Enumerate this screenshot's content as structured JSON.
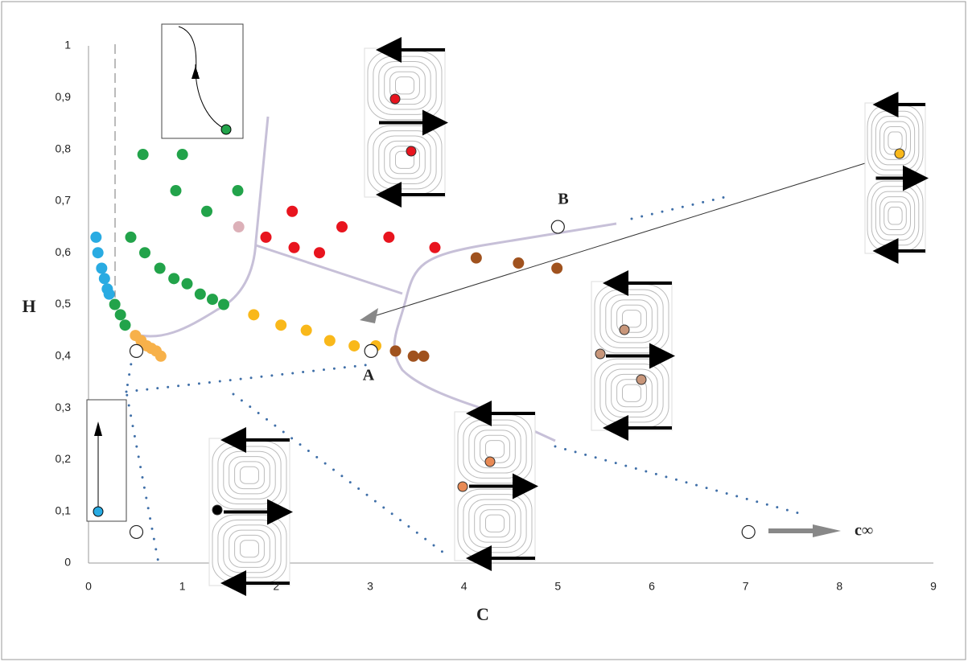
{
  "chart_data": {
    "type": "scatter",
    "xlabel": "C",
    "ylabel": "H",
    "xlim": [
      0,
      9
    ],
    "ylim": [
      0,
      1
    ],
    "xticks": [
      0,
      1,
      2,
      3,
      4,
      5,
      6,
      7,
      8,
      9
    ],
    "yticks": [
      0,
      {
        "value": 0.1,
        "label": "0,1"
      },
      {
        "value": 0.2,
        "label": "0,2"
      },
      {
        "value": 0.3,
        "label": "0,3"
      },
      {
        "value": 0.4,
        "label": "0,4"
      },
      {
        "value": 0.5,
        "label": "0,5"
      },
      {
        "value": 0.6,
        "label": "0,6"
      },
      {
        "value": 0.7,
        "label": "0,7"
      },
      {
        "value": 0.8,
        "label": "0,8"
      },
      {
        "value": 0.9,
        "label": "0,9"
      },
      1
    ],
    "series": [
      {
        "color": "#29abe2",
        "x": [
          0.08,
          0.1,
          0.14,
          0.17,
          0.2,
          0.22
        ],
        "values": [
          0.63,
          0.6,
          0.57,
          0.55,
          0.53,
          0.52
        ]
      },
      {
        "color": "#22a34a",
        "x": [
          0.28,
          0.34,
          0.39,
          0.45,
          0.6,
          0.76,
          0.91,
          1.05,
          1.19,
          1.32,
          1.44,
          0.58,
          1.0,
          0.93,
          1.59,
          1.26
        ],
        "values": [
          0.5,
          0.48,
          0.46,
          0.63,
          0.6,
          0.57,
          0.55,
          0.54,
          0.52,
          0.51,
          0.5,
          0.79,
          0.79,
          0.72,
          0.72,
          0.68
        ]
      },
      {
        "color": "#dcb0b8",
        "x": [
          1.6
        ],
        "values": [
          0.65
        ]
      },
      {
        "color": "#e8141e",
        "x": [
          1.89,
          2.17,
          2.19,
          2.46,
          2.7,
          3.2,
          3.69
        ],
        "values": [
          0.63,
          0.68,
          0.61,
          0.6,
          0.65,
          0.63,
          0.61
        ]
      },
      {
        "color": "#f7b14a",
        "x": [
          0.5,
          0.56,
          0.62,
          0.67,
          0.72,
          0.77
        ],
        "values": [
          0.44,
          0.43,
          0.42,
          0.415,
          0.41,
          0.4
        ]
      },
      {
        "color": "#f9b81a",
        "x": [
          1.76,
          2.05,
          2.32,
          2.57,
          2.83,
          3.06
        ],
        "values": [
          0.48,
          0.46,
          0.45,
          0.43,
          0.42,
          0.42
        ]
      },
      {
        "color": "#a0521e",
        "x": [
          3.27,
          3.46,
          3.57,
          4.13,
          4.58,
          4.99
        ],
        "values": [
          0.41,
          0.4,
          0.4,
          0.59,
          0.58,
          0.57
        ]
      },
      {
        "color": "#ffffff",
        "marker": "open",
        "x": [
          3.01,
          5.0,
          0.51,
          0.51,
          7.03
        ],
        "values": [
          0.41,
          0.65,
          0.41,
          0.06,
          0.06
        ]
      }
    ],
    "annotations": [
      "A",
      "B",
      "c∞"
    ]
  }
}
